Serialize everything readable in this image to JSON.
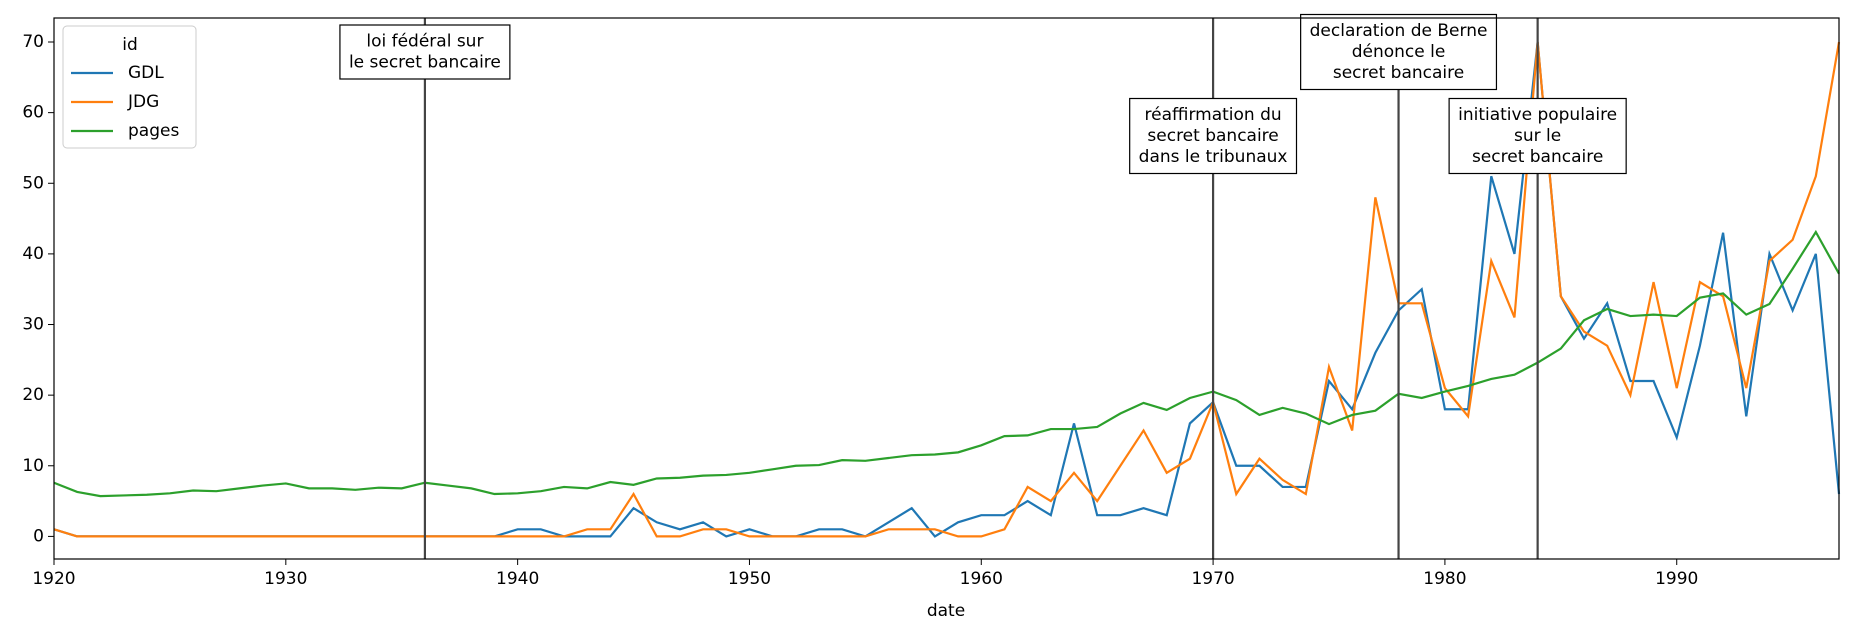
{
  "chart_data": {
    "type": "line",
    "xlabel": "date",
    "legend_title": "id",
    "legend": "upper left",
    "x": [
      1920,
      1921,
      1922,
      1923,
      1924,
      1925,
      1926,
      1927,
      1928,
      1929,
      1930,
      1931,
      1932,
      1933,
      1934,
      1935,
      1936,
      1937,
      1938,
      1939,
      1940,
      1941,
      1942,
      1943,
      1944,
      1945,
      1946,
      1947,
      1948,
      1949,
      1950,
      1951,
      1952,
      1953,
      1954,
      1955,
      1956,
      1957,
      1958,
      1959,
      1960,
      1961,
      1962,
      1963,
      1964,
      1965,
      1966,
      1967,
      1968,
      1969,
      1970,
      1971,
      1972,
      1973,
      1974,
      1975,
      1976,
      1977,
      1978,
      1979,
      1980,
      1981,
      1982,
      1983,
      1984,
      1985,
      1986,
      1987,
      1988,
      1989,
      1990,
      1991,
      1992,
      1993,
      1994,
      1995,
      1996,
      1997
    ],
    "series": [
      {
        "name": "GDL",
        "color": "#1f77b4",
        "values": [
          1,
          0,
          0,
          0,
          0,
          0,
          0,
          0,
          0,
          0,
          0,
          0,
          0,
          0,
          0,
          0,
          0,
          0,
          0,
          0,
          1,
          1,
          0,
          0,
          0,
          4,
          2,
          1,
          2,
          0,
          1,
          0,
          0,
          1,
          1,
          0,
          2,
          4,
          0,
          2,
          3,
          3,
          5,
          3,
          16,
          3,
          3,
          4,
          3,
          16,
          19,
          10,
          10,
          7,
          7,
          22,
          18,
          26,
          32,
          35,
          18,
          18,
          51,
          40,
          70,
          34,
          28,
          33,
          22,
          22,
          14,
          27,
          43,
          17,
          40,
          32,
          40,
          6
        ]
      },
      {
        "name": "JDG",
        "color": "#ff7f0e",
        "values": [
          1,
          0,
          0,
          0,
          0,
          0,
          0,
          0,
          0,
          0,
          0,
          0,
          0,
          0,
          0,
          0,
          0,
          0,
          0,
          0,
          0,
          0,
          0,
          1,
          1,
          6,
          0,
          0,
          1,
          1,
          0,
          0,
          0,
          0,
          0,
          0,
          1,
          1,
          1,
          0,
          0,
          1,
          7,
          5,
          9,
          5,
          10,
          15,
          9,
          11,
          19,
          6,
          11,
          8,
          6,
          24,
          15,
          48,
          33,
          33,
          21,
          17,
          39,
          31,
          70,
          34,
          29,
          27,
          20,
          36,
          21,
          36,
          34,
          21,
          39,
          42,
          51,
          70
        ]
      },
      {
        "name": "pages",
        "color": "#2ca02c",
        "values": [
          7.6,
          6.3,
          5.7,
          5.8,
          5.9,
          6.1,
          6.5,
          6.4,
          6.8,
          7.2,
          7.5,
          6.8,
          6.8,
          6.6,
          6.9,
          6.8,
          7.6,
          7.2,
          6.8,
          6.0,
          6.1,
          6.4,
          7.0,
          6.8,
          7.7,
          7.3,
          8.2,
          8.3,
          8.6,
          8.7,
          9.0,
          9.5,
          10.0,
          10.1,
          10.8,
          10.7,
          11.1,
          11.5,
          11.6,
          11.9,
          12.9,
          14.2,
          14.3,
          15.2,
          15.2,
          15.5,
          17.4,
          18.9,
          17.9,
          19.6,
          20.5,
          19.3,
          17.2,
          18.2,
          17.4,
          15.9,
          17.2,
          17.8,
          20.2,
          19.6,
          20.5,
          21.3,
          22.3,
          22.9,
          24.6,
          26.6,
          30.6,
          32.2,
          31.2,
          31.4,
          31.2,
          33.8,
          34.4,
          31.4,
          32.9,
          37.9,
          43.1,
          37.2
        ]
      }
    ],
    "xlim": [
      1920,
      1997
    ],
    "xticks": [
      1920,
      1930,
      1940,
      1950,
      1960,
      1970,
      1980,
      1990
    ],
    "ylim": [
      -3.2,
      73.4
    ],
    "yticks": [
      0,
      10,
      20,
      30,
      40,
      50,
      60,
      70
    ],
    "annotations": [
      {
        "x": 1936,
        "text": [
          "loi fédéral sur",
          "le secret bancaire"
        ]
      },
      {
        "x": 1970,
        "text": [
          "réaffirmation du",
          "secret bancaire",
          "dans le tribunaux"
        ]
      },
      {
        "x": 1978,
        "text": [
          "declaration de Berne",
          "dénonce le",
          "secret bancaire"
        ]
      },
      {
        "x": 1984,
        "text": [
          "initiative populaire",
          "sur le",
          "secret bancaire"
        ]
      }
    ]
  }
}
